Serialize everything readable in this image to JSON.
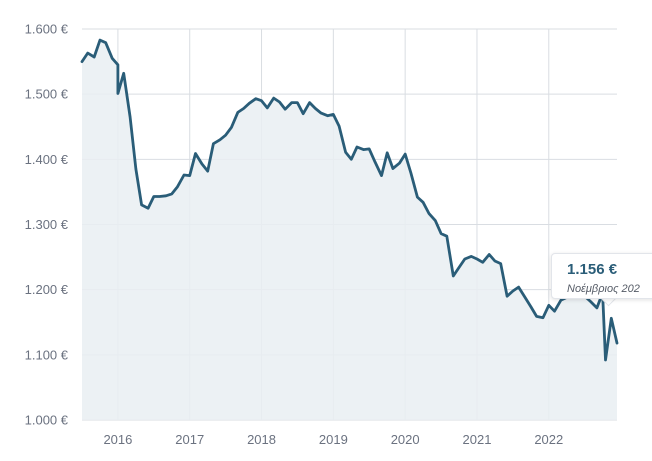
{
  "chart_data": {
    "type": "area",
    "y_ticks": [
      1600,
      1500,
      1400,
      1300,
      1200,
      1100,
      1000
    ],
    "y_tick_labels": [
      "1.600 €",
      "1.500 €",
      "1.400 €",
      "1.300 €",
      "1.200 €",
      "1.100 €",
      "1.000 €"
    ],
    "x_tick_labels": [
      "2016",
      "2017",
      "2018",
      "2019",
      "2020",
      "2021",
      "2022"
    ],
    "x_ticks": [
      2016,
      2017,
      2018,
      2019,
      2020,
      2021,
      2022
    ],
    "xlim": [
      2015.5,
      2022.95
    ],
    "ylim": [
      1000,
      1600
    ],
    "grid": true,
    "colors": {
      "line": "#2a5d78",
      "fill": "#e9eef2",
      "grid": "#d9dde2"
    },
    "series": [
      {
        "values": [
          [
            2015.5,
            1550
          ],
          [
            2015.58,
            1563
          ],
          [
            2015.67,
            1557
          ],
          [
            2015.75,
            1583
          ],
          [
            2015.83,
            1579
          ],
          [
            2015.92,
            1555
          ],
          [
            2016.0,
            1545
          ],
          [
            2016.0,
            1501
          ],
          [
            2016.08,
            1532
          ],
          [
            2016.17,
            1465
          ],
          [
            2016.25,
            1385
          ],
          [
            2016.33,
            1330
          ],
          [
            2016.42,
            1325
          ],
          [
            2016.5,
            1343
          ],
          [
            2016.58,
            1343
          ],
          [
            2016.67,
            1344
          ],
          [
            2016.75,
            1347
          ],
          [
            2016.83,
            1358
          ],
          [
            2016.92,
            1376
          ],
          [
            2017.0,
            1375
          ],
          [
            2017.08,
            1409
          ],
          [
            2017.17,
            1393
          ],
          [
            2017.25,
            1382
          ],
          [
            2017.33,
            1424
          ],
          [
            2017.42,
            1430
          ],
          [
            2017.5,
            1437
          ],
          [
            2017.58,
            1449
          ],
          [
            2017.67,
            1472
          ],
          [
            2017.75,
            1478
          ],
          [
            2017.83,
            1486
          ],
          [
            2017.92,
            1493
          ],
          [
            2018.0,
            1490
          ],
          [
            2018.08,
            1479
          ],
          [
            2018.17,
            1494
          ],
          [
            2018.25,
            1488
          ],
          [
            2018.33,
            1477
          ],
          [
            2018.42,
            1487
          ],
          [
            2018.5,
            1487
          ],
          [
            2018.58,
            1470
          ],
          [
            2018.67,
            1487
          ],
          [
            2018.75,
            1478
          ],
          [
            2018.83,
            1471
          ],
          [
            2018.92,
            1467
          ],
          [
            2019.0,
            1469
          ],
          [
            2019.08,
            1451
          ],
          [
            2019.17,
            1411
          ],
          [
            2019.25,
            1400
          ],
          [
            2019.33,
            1419
          ],
          [
            2019.42,
            1415
          ],
          [
            2019.5,
            1416
          ],
          [
            2019.58,
            1396
          ],
          [
            2019.67,
            1375
          ],
          [
            2019.75,
            1410
          ],
          [
            2019.83,
            1386
          ],
          [
            2019.92,
            1394
          ],
          [
            2020.0,
            1408
          ],
          [
            2020.08,
            1379
          ],
          [
            2020.17,
            1342
          ],
          [
            2020.25,
            1334
          ],
          [
            2020.33,
            1317
          ],
          [
            2020.42,
            1306
          ],
          [
            2020.5,
            1286
          ],
          [
            2020.58,
            1282
          ],
          [
            2020.67,
            1221
          ],
          [
            2020.75,
            1234
          ],
          [
            2020.83,
            1247
          ],
          [
            2020.92,
            1251
          ],
          [
            2021.0,
            1247
          ],
          [
            2021.08,
            1242
          ],
          [
            2021.17,
            1254
          ],
          [
            2021.25,
            1244
          ],
          [
            2021.33,
            1240
          ],
          [
            2021.42,
            1190
          ],
          [
            2021.5,
            1198
          ],
          [
            2021.58,
            1204
          ],
          [
            2021.67,
            1188
          ],
          [
            2021.75,
            1174
          ],
          [
            2021.83,
            1159
          ],
          [
            2021.92,
            1157
          ],
          [
            2022.0,
            1176
          ],
          [
            2022.08,
            1167
          ],
          [
            2022.17,
            1184
          ],
          [
            2022.25,
            1188
          ],
          [
            2022.33,
            1190
          ],
          [
            2022.42,
            1192
          ],
          [
            2022.5,
            1190
          ],
          [
            2022.58,
            1182
          ],
          [
            2022.67,
            1172
          ],
          [
            2022.75,
            1195
          ],
          [
            2022.79,
            1092
          ],
          [
            2022.87,
            1156
          ],
          [
            2022.95,
            1118
          ]
        ]
      }
    ]
  },
  "tooltip": {
    "value": "1.156 €",
    "date": "Νοέμβριος 202"
  }
}
